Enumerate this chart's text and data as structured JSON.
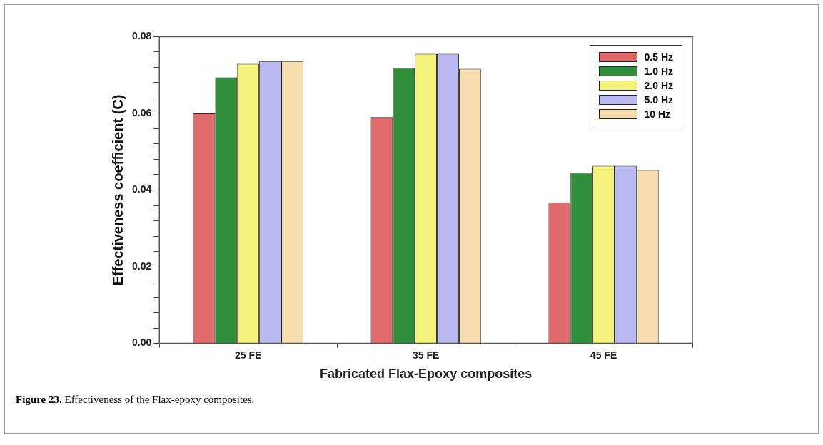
{
  "chart_data": {
    "type": "bar",
    "xlabel": "Fabricated Flax-Epoxy composites",
    "ylabel": "Effectiveness coefficient (C)",
    "categories": [
      "25 FE",
      "35 FE",
      "45 FE"
    ],
    "series": [
      {
        "name": "0.5 Hz",
        "color": "#e06a6a",
        "values": [
          0.06,
          0.059,
          0.0368
        ]
      },
      {
        "name": "1.0 Hz",
        "color": "#2f8f3a",
        "values": [
          0.0694,
          0.0718,
          0.0445
        ]
      },
      {
        "name": "2.0 Hz",
        "color": "#f3f27a",
        "values": [
          0.0729,
          0.0755,
          0.0463
        ]
      },
      {
        "name": "5.0 Hz",
        "color": "#b9b9f2",
        "values": [
          0.0736,
          0.0755,
          0.0463
        ]
      },
      {
        "name": "10 Hz",
        "color": "#f7dcb0",
        "values": [
          0.0736,
          0.0716,
          0.0452
        ]
      }
    ],
    "ylim": [
      0,
      0.08
    ],
    "yticks": [
      {
        "value": 0,
        "label": "0.00"
      },
      {
        "value": 0.004,
        "label": null
      },
      {
        "value": 0.008,
        "label": null
      },
      {
        "value": 0.012,
        "label": null
      },
      {
        "value": 0.016,
        "label": null
      },
      {
        "value": 0.02,
        "label": "0.02"
      },
      {
        "value": 0.024,
        "label": null
      },
      {
        "value": 0.028,
        "label": null
      },
      {
        "value": 0.032,
        "label": null
      },
      {
        "value": 0.036,
        "label": null
      },
      {
        "value": 0.04,
        "label": "0.04"
      },
      {
        "value": 0.044,
        "label": null
      },
      {
        "value": 0.048,
        "label": null
      },
      {
        "value": 0.052,
        "label": null
      },
      {
        "value": 0.056,
        "label": null
      },
      {
        "value": 0.06,
        "label": "0.06"
      },
      {
        "value": 0.064,
        "label": null
      },
      {
        "value": 0.068,
        "label": null
      },
      {
        "value": 0.072,
        "label": null
      },
      {
        "value": 0.076,
        "label": null
      },
      {
        "value": 0.08,
        "label": "0.08"
      }
    ],
    "grid": false,
    "legend": "top right",
    "annotations": [
      "Figure 23. Effectiveness of the Flax-epoxy composites."
    ]
  }
}
